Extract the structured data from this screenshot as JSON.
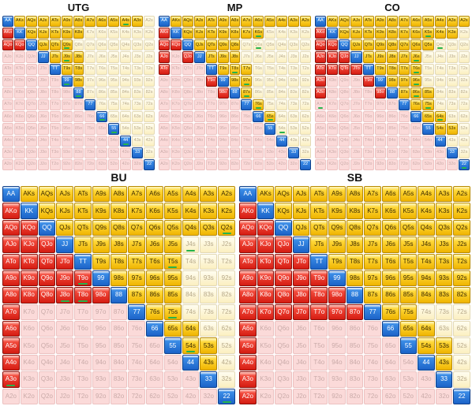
{
  "ranks": [
    "A",
    "K",
    "Q",
    "J",
    "T",
    "9",
    "8",
    "7",
    "6",
    "5",
    "4",
    "3",
    "2"
  ],
  "colors": {
    "pair": "#1c63c8",
    "suited_in": "#f5c000",
    "suited_out": "#fbefc0",
    "offsuit_in": "#e0261a",
    "offsuit_out": "#fbdad9",
    "marker": "#25b34b"
  },
  "charts": [
    {
      "id": "utg",
      "title": "UTG",
      "size": "small",
      "rows": [
        "1111111111110",
        "1111111000000",
        "1111110000000",
        "0001111000000",
        "0000111000000",
        "0000011000000",
        "0000001000000",
        "0000000100000",
        "0000000010000",
        "0000000001000",
        "0000000000100",
        "0000000000010",
        "0000000000001"
      ],
      "markers": [
        "A4s",
        "Q9s",
        "J9s",
        "99",
        "88",
        "66",
        "55",
        "44"
      ]
    },
    {
      "id": "mp",
      "title": "MP",
      "size": "small",
      "rows": [
        "1111111111111",
        "1111111110000",
        "1111111000000",
        "1011111000000",
        "1000111100000",
        "0000111100000",
        "0000011100000",
        "0000000110000",
        "0000000011000",
        "0000000001000",
        "0000000000100",
        "0000000000010",
        "0000000000001"
      ],
      "markers": [
        "K6s",
        "Q6s",
        "T8s",
        "97s",
        "87s",
        "76s",
        "65s",
        "54s"
      ]
    },
    {
      "id": "co",
      "title": "CO",
      "size": "small",
      "rows": [
        "1111111111111",
        "1111111111110",
        "1111111111000",
        "1111111110000",
        "1111111110000",
        "1000111110000",
        "1000011111000",
        "0000000111000",
        "0000000011100",
        "0000000001110",
        "0000000000100",
        "0000000000010",
        "0000000000001"
      ],
      "markers": [
        "K5s",
        "Q4s",
        "J6s",
        "T6s",
        "96s",
        "86s",
        "75s",
        "64s",
        "A7o",
        "22"
      ]
    },
    {
      "id": "bu",
      "title": "BU",
      "size": "big",
      "rows": [
        "1111111111111",
        "1111111111111",
        "1111111111111",
        "1111111111000",
        "1111111111000",
        "1111111111000",
        "1111111111000",
        "1000000111000",
        "1000000011100",
        "1000000001110",
        "1000000000110",
        "1000000000010",
        "0000000000001"
      ],
      "markers": [
        "Q2s",
        "J4s",
        "T5s",
        "T9o",
        "J8o",
        "T8o",
        "75s",
        "54s",
        "A3o",
        "22"
      ]
    },
    {
      "id": "sb",
      "title": "SB",
      "size": "big",
      "rows": [
        "1111111111111",
        "1111111111111",
        "1111111111111",
        "1111111111111",
        "1111111111111",
        "1111111111111",
        "1111111111111",
        "1111111111000",
        "1000000011100",
        "1000000001110",
        "1000000000110",
        "1000000000010",
        "1000000000001"
      ],
      "markers": []
    }
  ]
}
